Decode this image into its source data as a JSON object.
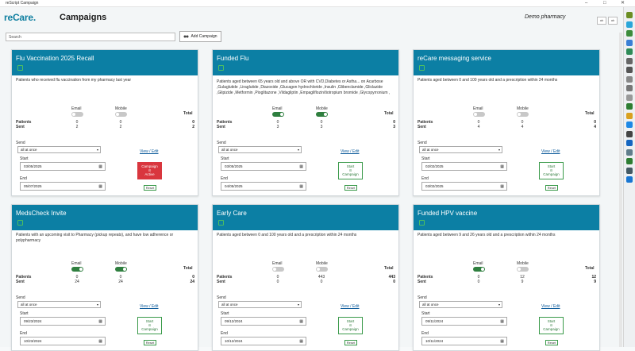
{
  "window": {
    "title": "reScript Campaign",
    "controls": [
      "–",
      "□",
      "✕"
    ]
  },
  "app": {
    "logo_prefix": "reCare",
    "logo_dot": ".",
    "page_title": "Campaigns",
    "pharmacy": "Demo pharmacy",
    "header_buttons": [
      "ab",
      "ab"
    ]
  },
  "toolbar": {
    "search_placeholder": "Search",
    "add_label": "Add Campaign"
  },
  "labels": {
    "email": "Email",
    "mobile": "Mobile",
    "total": "Total",
    "patients": "Patients",
    "sent": "Sent",
    "send": "Send",
    "start": "Start",
    "end": "End",
    "view_edit": "View / Edit",
    "reset": "Reset",
    "start_campaign_1": "Start",
    "start_campaign_2": "Campaign",
    "campaign_active_1": "Campaign",
    "campaign_active_2": "Active"
  },
  "cards": [
    {
      "name": "Flu Vaccination 2025 Recall",
      "description": "Patients who received flu vaccination from my pharmacy last year",
      "email_on": false,
      "mobile_on": false,
      "patients": {
        "email": "0",
        "mobile": "0",
        "total": "0"
      },
      "sent": {
        "email": "2",
        "mobile": "2",
        "total": "2"
      },
      "send": "all at once",
      "start": "03/05/2025",
      "end": "05/07/2025",
      "active": true
    },
    {
      "name": "Funded Flu",
      "description": "Patients aged between 65 years old and above OR with CVD,Diabetes or Astha... on Acarbose ,Gulaglutide ,Liraglutide ,Diazoxide ,Glucagon hydrochloride ,Insulin ,Glibenclamide ,Gliclazide ,Glipizide ,Metformin ,Pioglitazone ,Vildagliptin ,Empagliflozin/tiotropium bromide ,Glycopyrronium ,",
      "email_on": true,
      "mobile_on": true,
      "patients": {
        "email": "0",
        "mobile": "0",
        "total": "0"
      },
      "sent": {
        "email": "3",
        "mobile": "3",
        "total": "3"
      },
      "send": "all at once",
      "start": "03/05/2025",
      "end": "04/05/2025",
      "active": false
    },
    {
      "name": "reCare messaging service",
      "description": "Patients aged between 0 and 100 years old and a prescription within 24 months",
      "email_on": false,
      "mobile_on": false,
      "patients": {
        "email": "0",
        "mobile": "0",
        "total": "0"
      },
      "sent": {
        "email": "4",
        "mobile": "4",
        "total": "4"
      },
      "send": "all at once",
      "start": "02/02/2025",
      "end": "03/02/2025",
      "active": false
    },
    {
      "name": "MedsCheck Invite",
      "description": "Patients with an upcoming visit to Pharmacy (pickup repeats), and have low adherence or polypharmacy",
      "email_on": true,
      "mobile_on": true,
      "patients": {
        "email": "0",
        "mobile": "0",
        "total": "0"
      },
      "sent": {
        "email": "24",
        "mobile": "24",
        "total": "24"
      },
      "send": "all at once",
      "start": "09/23/2024",
      "end": "10/23/2024",
      "active": false
    },
    {
      "name": "Early Care",
      "description": "Patients aged between 0 and 100 years old and a prescription within 24 months",
      "email_on": false,
      "mobile_on": false,
      "patients": {
        "email": "0",
        "mobile": "443",
        "total": "443"
      },
      "sent": {
        "email": "0",
        "mobile": "0",
        "total": "0"
      },
      "send": "all at once",
      "start": "09/12/2024",
      "end": "10/12/2024",
      "active": false
    },
    {
      "name": "Funded HPV vaccine",
      "description": "Patients aged between 9 and 26 years old and a prescription within 24 months",
      "email_on": true,
      "mobile_on": false,
      "patients": {
        "email": "0",
        "mobile": "12",
        "total": "12"
      },
      "sent": {
        "email": "0",
        "mobile": "9",
        "total": "9"
      },
      "send": "all at once",
      "start": "09/11/2024",
      "end": "10/11/2024",
      "active": false
    }
  ],
  "right_bar_icons": [
    {
      "name": "tool-icon",
      "color": "#6b8e23"
    },
    {
      "name": "plus-icon",
      "color": "#2aa6d9"
    },
    {
      "name": "bookmark-icon",
      "color": "#3c8c3c"
    },
    {
      "name": "diamond-icon",
      "color": "#3a7fd5"
    },
    {
      "name": "leaf-icon",
      "color": "#2e8b57"
    },
    {
      "name": "chart-icon",
      "color": "#666666"
    },
    {
      "name": "settings-icon",
      "color": "#555555"
    },
    {
      "name": "info-icon",
      "color": "#888888"
    },
    {
      "name": "pen-icon",
      "color": "#777777"
    },
    {
      "name": "file-icon",
      "color": "#999999"
    },
    {
      "name": "shield-icon",
      "color": "#2e7d32"
    },
    {
      "name": "bell-icon",
      "color": "#d9a020"
    },
    {
      "name": "blue-plus-icon",
      "color": "#1e88e5"
    },
    {
      "name": "star-icon",
      "color": "#444444"
    },
    {
      "name": "grid-icon",
      "color": "#1565c0"
    },
    {
      "name": "box-icon",
      "color": "#607d8b"
    },
    {
      "name": "flag-icon",
      "color": "#2e7d32"
    },
    {
      "name": "bars-icon",
      "color": "#455a64"
    },
    {
      "name": "doc-icon",
      "color": "#1976d2"
    }
  ]
}
